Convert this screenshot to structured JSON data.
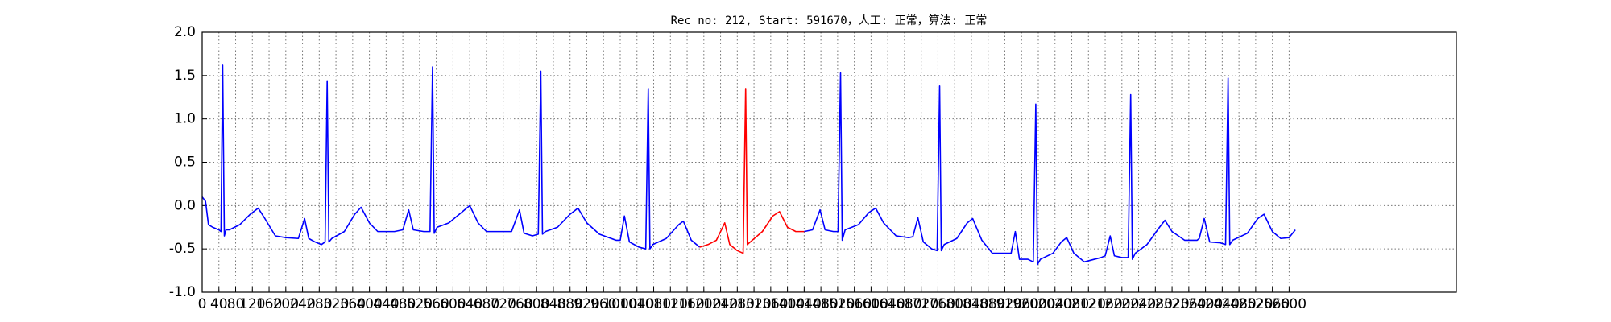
{
  "chart_data": {
    "type": "line",
    "title": "Rec_no: 212, Start: 591670，人工: 正常，算法: 正常",
    "xlim": [
      0,
      3000
    ],
    "ylim": [
      -1,
      2
    ],
    "yticks": [
      {
        "value": -1,
        "label": "-1.0"
      },
      {
        "value": -0.5,
        "label": "-0.5"
      },
      {
        "value": 0,
        "label": "0.0"
      },
      {
        "value": 0.5,
        "label": "0.5"
      },
      {
        "value": 1,
        "label": "1.0"
      },
      {
        "value": 1.5,
        "label": "1.5"
      },
      {
        "value": 2,
        "label": "2.0"
      }
    ],
    "xticks": [
      0,
      40,
      80,
      120,
      160,
      200,
      240,
      280,
      320,
      360,
      400,
      440,
      480,
      520,
      560,
      600,
      640,
      680,
      720,
      760,
      800,
      840,
      880,
      920,
      960,
      1000,
      1040,
      1080,
      1120,
      1160,
      1200,
      1240,
      1280,
      1320,
      1360,
      1400,
      1440,
      1480,
      1520,
      1560,
      1600,
      1640,
      1680,
      1720,
      1760,
      1800,
      1840,
      1880,
      1920,
      1960,
      2000,
      2040,
      2080,
      2120,
      2160,
      2200,
      2240,
      2280,
      2320,
      2360,
      2400,
      2440,
      2480,
      2520,
      2560,
      2600
    ],
    "grid": true,
    "series": [
      {
        "color": "#0000ff",
        "x": [
          0,
          8,
          15,
          25,
          40,
          45,
          49,
          53,
          57,
          65,
          90,
          115,
          134,
          150,
          175,
          200,
          230,
          245,
          255,
          270,
          285,
          294,
          299,
          303,
          310,
          340,
          365,
          380,
          400,
          420,
          460,
          480,
          494,
          505,
          530,
          545,
          551,
          555,
          562,
          590,
          620,
          640,
          660,
          680,
          720,
          740,
          759,
          770,
          790,
          804,
          810,
          814,
          821,
          850,
          880,
          899,
          920,
          950,
          990,
          1000,
          1010,
          1022,
          1045,
          1061,
          1067,
          1071,
          1078,
          1110,
          1140,
          1151,
          1170,
          1190,
          1300,
          1440,
          1460,
          1478,
          1490,
          1510,
          1521,
          1527,
          1531,
          1538,
          1570,
          1595,
          1611,
          1630,
          1660,
          1690,
          1700,
          1712,
          1725,
          1745,
          1758,
          1764,
          1768,
          1775,
          1805,
          1830,
          1843,
          1865,
          1890,
          1925,
          1935,
          1945,
          1955,
          1975,
          1988,
          1994,
          1998,
          2005,
          2035,
          2055,
          2068,
          2085,
          2110,
          2150,
          2160,
          2172,
          2182,
          2200,
          2215,
          2221,
          2225,
          2232,
          2260,
          2290,
          2303,
          2320,
          2350,
          2380,
          2385,
          2397,
          2410,
          2435,
          2448,
          2454,
          2458,
          2465,
          2500,
          2525,
          2540,
          2560,
          2580,
          2600,
          2615
        ],
        "values": [
          0.1,
          0.05,
          -0.22,
          -0.25,
          -0.28,
          -0.3,
          1.62,
          -0.35,
          -0.28,
          -0.28,
          -0.22,
          -0.1,
          -0.03,
          -0.15,
          -0.35,
          -0.37,
          -0.38,
          -0.15,
          -0.38,
          -0.42,
          -0.45,
          -0.42,
          1.44,
          -0.42,
          -0.38,
          -0.3,
          -0.1,
          -0.02,
          -0.2,
          -0.3,
          -0.3,
          -0.28,
          -0.05,
          -0.28,
          -0.3,
          -0.3,
          1.6,
          -0.32,
          -0.25,
          -0.2,
          -0.08,
          0.0,
          -0.2,
          -0.3,
          -0.3,
          -0.3,
          -0.05,
          -0.32,
          -0.35,
          -0.33,
          1.55,
          -0.33,
          -0.3,
          -0.25,
          -0.1,
          -0.03,
          -0.2,
          -0.33,
          -0.4,
          -0.4,
          -0.12,
          -0.42,
          -0.48,
          -0.5,
          1.35,
          -0.5,
          -0.45,
          -0.38,
          -0.22,
          -0.18,
          -0.4,
          -0.48,
          null,
          -0.3,
          -0.28,
          -0.05,
          -0.28,
          -0.3,
          -0.3,
          1.53,
          -0.4,
          -0.28,
          -0.22,
          -0.08,
          -0.03,
          -0.2,
          -0.35,
          -0.37,
          -0.36,
          -0.14,
          -0.42,
          -0.5,
          -0.52,
          1.38,
          -0.52,
          -0.45,
          -0.38,
          -0.2,
          -0.15,
          -0.4,
          -0.55,
          -0.55,
          -0.55,
          -0.3,
          -0.62,
          -0.62,
          -0.65,
          1.17,
          -0.68,
          -0.62,
          -0.55,
          -0.42,
          -0.37,
          -0.55,
          -0.65,
          -0.6,
          -0.58,
          -0.35,
          -0.58,
          -0.6,
          -0.6,
          1.28,
          -0.62,
          -0.55,
          -0.45,
          -0.25,
          -0.17,
          -0.3,
          -0.4,
          -0.4,
          -0.38,
          -0.15,
          -0.42,
          -0.43,
          -0.45,
          1.47,
          -0.45,
          -0.4,
          -0.32,
          -0.15,
          -0.1,
          -0.3,
          -0.38,
          -0.37,
          -0.28
        ]
      },
      {
        "color": "#ff0000",
        "x": [
          1190,
          1210,
          1230,
          1250,
          1262,
          1280,
          1294,
          1300,
          1304,
          1311,
          1340,
          1365,
          1381,
          1400,
          1420,
          1440
        ],
        "values": [
          -0.48,
          -0.45,
          -0.4,
          -0.2,
          -0.45,
          -0.52,
          -0.55,
          1.35,
          -0.45,
          -0.42,
          -0.3,
          -0.12,
          -0.07,
          -0.25,
          -0.3,
          -0.3
        ]
      }
    ]
  }
}
